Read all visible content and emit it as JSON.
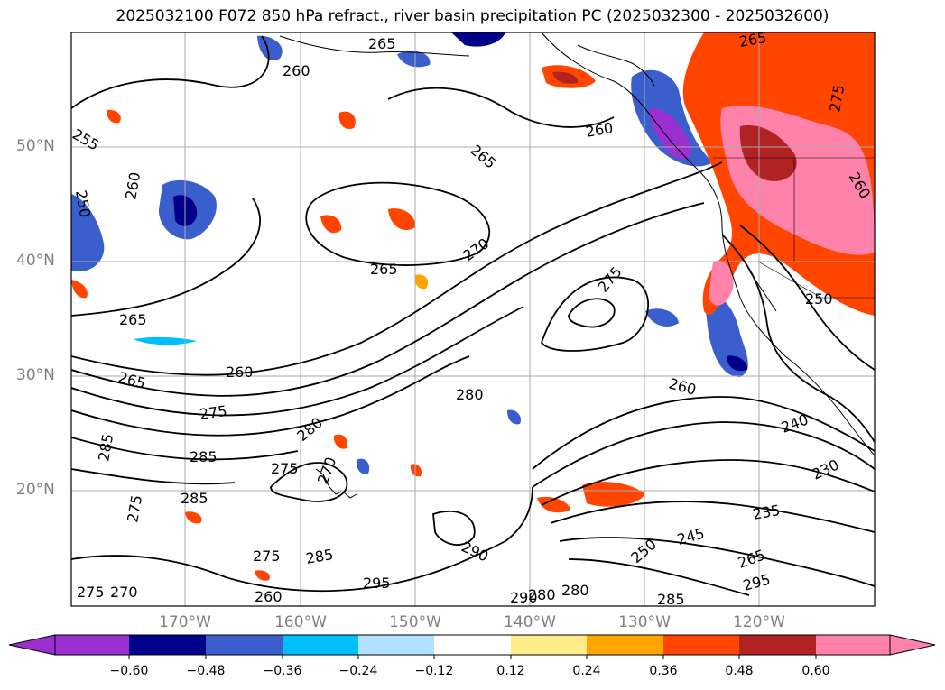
{
  "title": "2025032100 F072 850 hPa refract., river basin precipitation PC (2025032300 - 2025032600)",
  "map": {
    "lat_labels": [
      "50°N",
      "40°N",
      "30°N",
      "20°N"
    ],
    "lon_labels": [
      "170°W",
      "160°W",
      "150°W",
      "140°W",
      "130°W",
      "120°W"
    ],
    "contour_labels": [
      "265",
      "260",
      "255",
      "260",
      "250",
      "265",
      "260",
      "265",
      "265",
      "270",
      "275",
      "265",
      "260",
      "265",
      "275",
      "280",
      "285",
      "285",
      "280",
      "275",
      "270",
      "285",
      "275",
      "285",
      "295",
      "290",
      "275",
      "270",
      "275",
      "260",
      "250",
      "245",
      "240",
      "235",
      "230",
      "260",
      "280",
      "290",
      "285",
      "280",
      "265",
      "295",
      "250",
      "275",
      "260"
    ]
  },
  "colorbar": {
    "ticks": [
      "−0.60",
      "−0.48",
      "−0.36",
      "−0.24",
      "−0.12",
      "0.12",
      "0.24",
      "0.36",
      "0.48",
      "0.60"
    ],
    "colors": [
      "#9b30d0",
      "#00008b",
      "#3a5fcd",
      "#00bfff",
      "#b0e2ff",
      "#ffffff",
      "#ffec8b",
      "#ffa500",
      "#ff4500",
      "#b22222",
      "#ff82ab"
    ]
  }
}
